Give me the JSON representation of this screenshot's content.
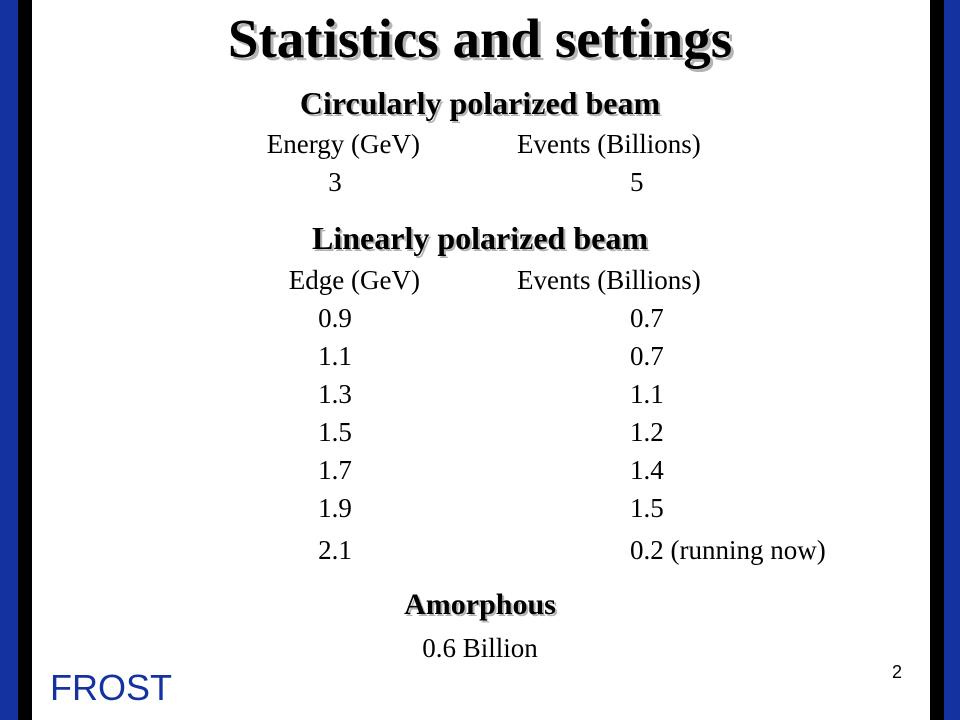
{
  "slide": {
    "title": "Statistics and settings",
    "circular": {
      "heading": "Circularly polarized beam",
      "col1_header": "Energy (GeV)",
      "col2_header": "Events (Billions)",
      "rows": [
        {
          "a": "3",
          "b": "5"
        }
      ]
    },
    "linear": {
      "heading": "Linearly polarized beam",
      "col1_header": "Edge (GeV)",
      "col2_header": "Events (Billions)",
      "rows": [
        {
          "a": "0.9",
          "b": "0.7"
        },
        {
          "a": "1.1",
          "b": "0.7"
        },
        {
          "a": "1.3",
          "b": "1.1"
        },
        {
          "a": "1.5",
          "b": "1.2"
        },
        {
          "a": "1.7",
          "b": "1.4"
        },
        {
          "a": "1.9",
          "b": "1.5"
        },
        {
          "a": "2.1",
          "b": "0.2 (running now)"
        }
      ]
    },
    "amorphous": {
      "heading": "Amorphous",
      "value": "0.6 Billion"
    },
    "footer": {
      "logo_text": "FROST",
      "page_number": "2"
    },
    "colors": {
      "accent_blue": "#1432a0",
      "frame_black": "#000000",
      "background": "#ffffff"
    }
  }
}
